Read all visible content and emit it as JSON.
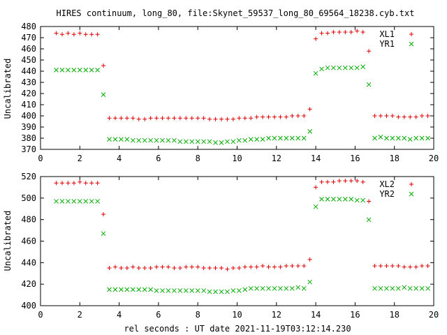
{
  "chart_data": {
    "title": "HIRES continuum, long_80, file:Skynet_59537_long_80_69564_18238.cyb.txt",
    "xlabel": "rel seconds : UT date 2021-11-19T03:12:14.230",
    "panels": [
      {
        "type": "scatter",
        "ylabel": "Uncalibrated",
        "xlim": [
          0,
          20
        ],
        "ylim": [
          370,
          480
        ],
        "xticks": [
          0,
          2,
          4,
          6,
          8,
          10,
          12,
          14,
          16,
          18,
          20
        ],
        "yticks": [
          370,
          380,
          390,
          400,
          410,
          420,
          430,
          440,
          450,
          460,
          470,
          480
        ],
        "legend": "top-right",
        "series": [
          {
            "name": "XL1",
            "color": "#dd0000",
            "marker": "plus",
            "x": [
              0.8,
              1.1,
              1.4,
              1.7,
              2.0,
              2.3,
              2.6,
              2.9,
              3.2,
              3.5,
              3.8,
              4.1,
              4.4,
              4.7,
              5.0,
              5.3,
              5.6,
              5.9,
              6.2,
              6.5,
              6.8,
              7.1,
              7.4,
              7.7,
              8.0,
              8.3,
              8.6,
              8.9,
              9.2,
              9.5,
              9.8,
              10.1,
              10.4,
              10.7,
              11.0,
              11.3,
              11.6,
              11.9,
              12.2,
              12.5,
              12.8,
              13.1,
              13.4,
              13.7,
              14.0,
              14.3,
              14.6,
              14.9,
              15.2,
              15.5,
              15.8,
              16.1,
              16.4,
              16.7,
              17.0,
              17.3,
              17.6,
              17.9,
              18.2,
              18.5,
              18.8,
              19.1,
              19.4,
              19.7
            ],
            "y": [
              474,
              473,
              474,
              473,
              474,
              473,
              473,
              473,
              445,
              398,
              398,
              398,
              398,
              398,
              397,
              397,
              398,
              398,
              398,
              398,
              398,
              398,
              398,
              398,
              398,
              398,
              397,
              397,
              397,
              397,
              397,
              398,
              398,
              398,
              399,
              399,
              399,
              399,
              399,
              399,
              400,
              400,
              400,
              406,
              469,
              474,
              474,
              475,
              475,
              475,
              475,
              476,
              475,
              458,
              400,
              400,
              400,
              400,
              399,
              399,
              399,
              399,
              400,
              400
            ]
          },
          {
            "name": "YR1",
            "color": "#00aa00",
            "marker": "x",
            "x": [
              0.8,
              1.1,
              1.4,
              1.7,
              2.0,
              2.3,
              2.6,
              2.9,
              3.2,
              3.5,
              3.8,
              4.1,
              4.4,
              4.7,
              5.0,
              5.3,
              5.6,
              5.9,
              6.2,
              6.5,
              6.8,
              7.1,
              7.4,
              7.7,
              8.0,
              8.3,
              8.6,
              8.9,
              9.2,
              9.5,
              9.8,
              10.1,
              10.4,
              10.7,
              11.0,
              11.3,
              11.6,
              11.9,
              12.2,
              12.5,
              12.8,
              13.1,
              13.4,
              13.7,
              14.0,
              14.3,
              14.6,
              14.9,
              15.2,
              15.5,
              15.8,
              16.1,
              16.4,
              16.7,
              17.0,
              17.3,
              17.6,
              17.9,
              18.2,
              18.5,
              18.8,
              19.1,
              19.4,
              19.7
            ],
            "y": [
              441,
              441,
              441,
              441,
              441,
              441,
              441,
              441,
              419,
              379,
              379,
              379,
              379,
              378,
              378,
              378,
              378,
              378,
              378,
              378,
              378,
              377,
              377,
              377,
              377,
              377,
              377,
              376,
              376,
              377,
              377,
              378,
              378,
              379,
              379,
              379,
              380,
              380,
              380,
              380,
              380,
              380,
              380,
              386,
              438,
              442,
              443,
              443,
              443,
              443,
              443,
              443,
              444,
              428,
              380,
              381,
              380,
              380,
              380,
              380,
              379,
              380,
              380,
              380
            ]
          }
        ]
      },
      {
        "type": "scatter",
        "ylabel": "Uncalibrated",
        "xlim": [
          0,
          20
        ],
        "ylim": [
          400,
          520
        ],
        "xticks": [
          0,
          2,
          4,
          6,
          8,
          10,
          12,
          14,
          16,
          18,
          20
        ],
        "yticks": [
          400,
          420,
          440,
          460,
          480,
          500,
          520
        ],
        "legend": "top-right",
        "series": [
          {
            "name": "XL2",
            "color": "#dd0000",
            "marker": "plus",
            "x": [
              0.8,
              1.1,
              1.4,
              1.7,
              2.0,
              2.3,
              2.6,
              2.9,
              3.2,
              3.5,
              3.8,
              4.1,
              4.4,
              4.7,
              5.0,
              5.3,
              5.6,
              5.9,
              6.2,
              6.5,
              6.8,
              7.1,
              7.4,
              7.7,
              8.0,
              8.3,
              8.6,
              8.9,
              9.2,
              9.5,
              9.8,
              10.1,
              10.4,
              10.7,
              11.0,
              11.3,
              11.6,
              11.9,
              12.2,
              12.5,
              12.8,
              13.1,
              13.4,
              13.7,
              14.0,
              14.3,
              14.6,
              14.9,
              15.2,
              15.5,
              15.8,
              16.1,
              16.4,
              16.7,
              17.0,
              17.3,
              17.6,
              17.9,
              18.2,
              18.5,
              18.8,
              19.1,
              19.4,
              19.7
            ],
            "y": [
              514,
              514,
              514,
              514,
              515,
              514,
              514,
              514,
              485,
              435,
              436,
              435,
              435,
              436,
              435,
              435,
              435,
              436,
              436,
              436,
              435,
              435,
              436,
              436,
              436,
              435,
              435,
              435,
              435,
              434,
              435,
              435,
              436,
              436,
              436,
              437,
              436,
              436,
              436,
              437,
              437,
              437,
              437,
              443,
              510,
              515,
              515,
              515,
              516,
              516,
              516,
              516,
              515,
              497,
              437,
              437,
              437,
              437,
              437,
              436,
              436,
              436,
              437,
              437
            ]
          },
          {
            "name": "YR2",
            "color": "#00aa00",
            "marker": "x",
            "x": [
              0.8,
              1.1,
              1.4,
              1.7,
              2.0,
              2.3,
              2.6,
              2.9,
              3.2,
              3.5,
              3.8,
              4.1,
              4.4,
              4.7,
              5.0,
              5.3,
              5.6,
              5.9,
              6.2,
              6.5,
              6.8,
              7.1,
              7.4,
              7.7,
              8.0,
              8.3,
              8.6,
              8.9,
              9.2,
              9.5,
              9.8,
              10.1,
              10.4,
              10.7,
              11.0,
              11.3,
              11.6,
              11.9,
              12.2,
              12.5,
              12.8,
              13.1,
              13.4,
              13.7,
              14.0,
              14.3,
              14.6,
              14.9,
              15.2,
              15.5,
              15.8,
              16.1,
              16.4,
              16.7,
              17.0,
              17.3,
              17.6,
              17.9,
              18.2,
              18.5,
              18.8,
              19.1,
              19.4,
              19.7
            ],
            "y": [
              497,
              497,
              497,
              497,
              497,
              497,
              497,
              497,
              467,
              415,
              415,
              415,
              415,
              415,
              415,
              415,
              415,
              414,
              414,
              414,
              414,
              414,
              414,
              414,
              414,
              414,
              413,
              413,
              413,
              413,
              414,
              414,
              415,
              416,
              416,
              416,
              416,
              416,
              416,
              416,
              416,
              417,
              416,
              422,
              492,
              499,
              499,
              499,
              499,
              499,
              499,
              498,
              498,
              480,
              416,
              416,
              416,
              416,
              416,
              417,
              416,
              416,
              416,
              416
            ]
          }
        ]
      }
    ]
  }
}
